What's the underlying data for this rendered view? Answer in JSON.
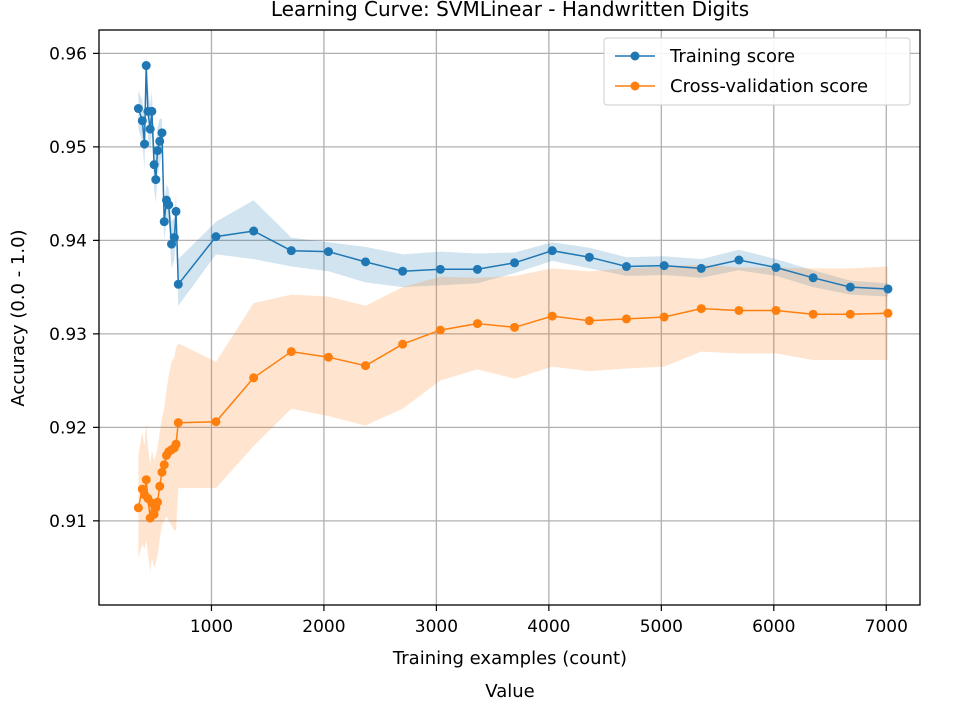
{
  "colors": {
    "training": "#1f77b4",
    "cv": "#ff7f0e",
    "grid": "#b0b0b0",
    "axes": "#000000"
  },
  "chart_data": {
    "type": "line",
    "title": "Learning Curve: SVMLinear - Handwritten Digits",
    "xlabel": "Training examples (count)",
    "xlabel_secondary": "Value",
    "ylabel": "Accuracy (0.0 - 1.0)",
    "xlim": [
      0,
      7300
    ],
    "ylim": [
      0.901,
      0.9625
    ],
    "x_ticks": [
      1000,
      2000,
      3000,
      4000,
      5000,
      6000,
      7000
    ],
    "y_ticks": [
      0.91,
      0.92,
      0.93,
      0.94,
      0.95,
      0.96
    ],
    "grid": true,
    "legend_position": "top-right",
    "x": [
      350,
      385,
      405,
      420,
      435,
      455,
      470,
      490,
      505,
      520,
      540,
      560,
      580,
      600,
      620,
      645,
      670,
      685,
      705,
      1040,
      1375,
      1710,
      2040,
      2370,
      2700,
      3035,
      3365,
      3695,
      4030,
      4360,
      4690,
      5025,
      5355,
      5690,
      6020,
      6350,
      6680,
      7015
    ],
    "series": [
      {
        "name": "Training score",
        "color": "#1f77b4",
        "values": [
          0.9541,
          0.9528,
          0.9503,
          0.9587,
          0.9538,
          0.9519,
          0.9538,
          0.9481,
          0.9465,
          0.9496,
          0.9506,
          0.9515,
          0.942,
          0.9443,
          0.9438,
          0.9396,
          0.9403,
          0.9431,
          0.9353,
          0.9404,
          0.941,
          0.9389,
          0.9388,
          0.9377,
          0.9367,
          0.9369,
          0.9369,
          0.9376,
          0.9389,
          0.9382,
          0.9372,
          0.9373,
          0.937,
          0.9379,
          0.9371,
          0.936,
          0.935,
          0.9348
        ],
        "band_upper": [
          0.956,
          0.955,
          0.953,
          0.96,
          0.9565,
          0.9545,
          0.956,
          0.9505,
          0.9495,
          0.952,
          0.953,
          0.953,
          0.944,
          0.946,
          0.9455,
          0.942,
          0.9425,
          0.945,
          0.938,
          0.942,
          0.9443,
          0.9403,
          0.9398,
          0.9393,
          0.9385,
          0.9388,
          0.9386,
          0.9387,
          0.9398,
          0.9392,
          0.9382,
          0.9383,
          0.938,
          0.939,
          0.938,
          0.9368,
          0.9357,
          0.9354
        ],
        "band_lower": [
          0.952,
          0.9505,
          0.9475,
          0.9575,
          0.951,
          0.9495,
          0.9515,
          0.9455,
          0.944,
          0.947,
          0.948,
          0.9495,
          0.94,
          0.942,
          0.942,
          0.937,
          0.938,
          0.941,
          0.933,
          0.9385,
          0.938,
          0.9372,
          0.9367,
          0.9355,
          0.935,
          0.9352,
          0.9354,
          0.9365,
          0.9378,
          0.937,
          0.9362,
          0.9363,
          0.936,
          0.9368,
          0.9362,
          0.935,
          0.9342,
          0.934
        ]
      },
      {
        "name": "Cross-validation score",
        "color": "#ff7f0e",
        "values": [
          0.9114,
          0.9134,
          0.9128,
          0.9144,
          0.9124,
          0.9103,
          0.9119,
          0.9107,
          0.9114,
          0.912,
          0.9137,
          0.9152,
          0.916,
          0.917,
          0.9174,
          0.9176,
          0.9178,
          0.9182,
          0.9205,
          0.9206,
          0.9253,
          0.9281,
          0.9275,
          0.9266,
          0.9289,
          0.9304,
          0.9311,
          0.9307,
          0.9319,
          0.9314,
          0.9316,
          0.9318,
          0.9327,
          0.9325,
          0.9325,
          0.9321,
          0.9321,
          0.9322
        ],
        "band_upper": [
          0.917,
          0.9195,
          0.918,
          0.9205,
          0.918,
          0.916,
          0.9175,
          0.9165,
          0.917,
          0.9178,
          0.9195,
          0.921,
          0.922,
          0.924,
          0.9255,
          0.927,
          0.9275,
          0.9285,
          0.929,
          0.927,
          0.9333,
          0.9342,
          0.934,
          0.933,
          0.935,
          0.9361,
          0.936,
          0.9362,
          0.937,
          0.9367,
          0.937,
          0.9372,
          0.9374,
          0.9371,
          0.9371,
          0.937,
          0.937,
          0.9372
        ],
        "band_lower": [
          0.906,
          0.9075,
          0.907,
          0.908,
          0.9065,
          0.9045,
          0.906,
          0.905,
          0.9055,
          0.9062,
          0.908,
          0.9095,
          0.91,
          0.9105,
          0.91,
          0.9095,
          0.909,
          0.909,
          0.9135,
          0.9135,
          0.918,
          0.922,
          0.9212,
          0.9202,
          0.922,
          0.925,
          0.9262,
          0.9252,
          0.9265,
          0.926,
          0.9263,
          0.9265,
          0.9281,
          0.9279,
          0.9279,
          0.9272,
          0.9272,
          0.9272
        ]
      }
    ]
  }
}
